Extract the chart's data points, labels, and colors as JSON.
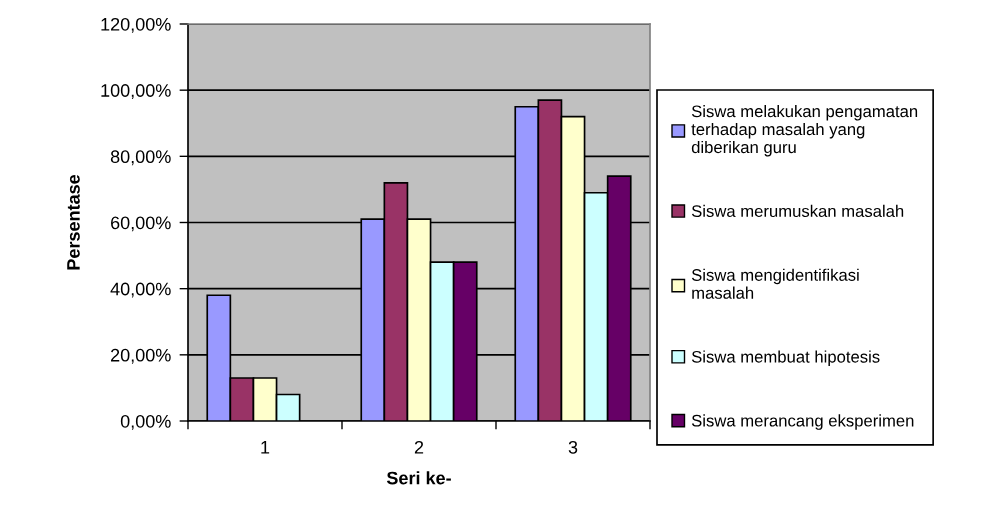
{
  "chart_data": {
    "type": "bar",
    "xlabel": "Seri ke-",
    "ylabel": "Persentase",
    "categories": [
      "1",
      "2",
      "3"
    ],
    "series": [
      {
        "name": "Siswa melakukan pengamatan\nterhadap masalah yang\ndiberikan guru",
        "color": "#9999ff",
        "values": [
          38,
          61,
          95
        ]
      },
      {
        "name": "Siswa merumuskan masalah",
        "color": "#993366",
        "values": [
          13,
          72,
          97
        ]
      },
      {
        "name": "Siswa mengidentifikasi\nmasalah",
        "color": "#ffffcc",
        "values": [
          13,
          61,
          92
        ]
      },
      {
        "name": "Siswa membuat hipotesis",
        "color": "#ccffff",
        "values": [
          8,
          48,
          69
        ]
      },
      {
        "name": "Siswa merancang eksperimen",
        "color": "#660066",
        "values": [
          null,
          48,
          74
        ]
      }
    ],
    "ylim": [
      0,
      120
    ],
    "yticks": [
      {
        "value": 0,
        "label": "0,00%"
      },
      {
        "value": 20,
        "label": "20,00%"
      },
      {
        "value": 40,
        "label": "40,00%"
      },
      {
        "value": 60,
        "label": "60,00%"
      },
      {
        "value": 80,
        "label": "80,00%"
      },
      {
        "value": 100,
        "label": "100,00%"
      },
      {
        "value": 120,
        "label": "120,00%"
      }
    ],
    "grid": "y",
    "legend": "right"
  }
}
